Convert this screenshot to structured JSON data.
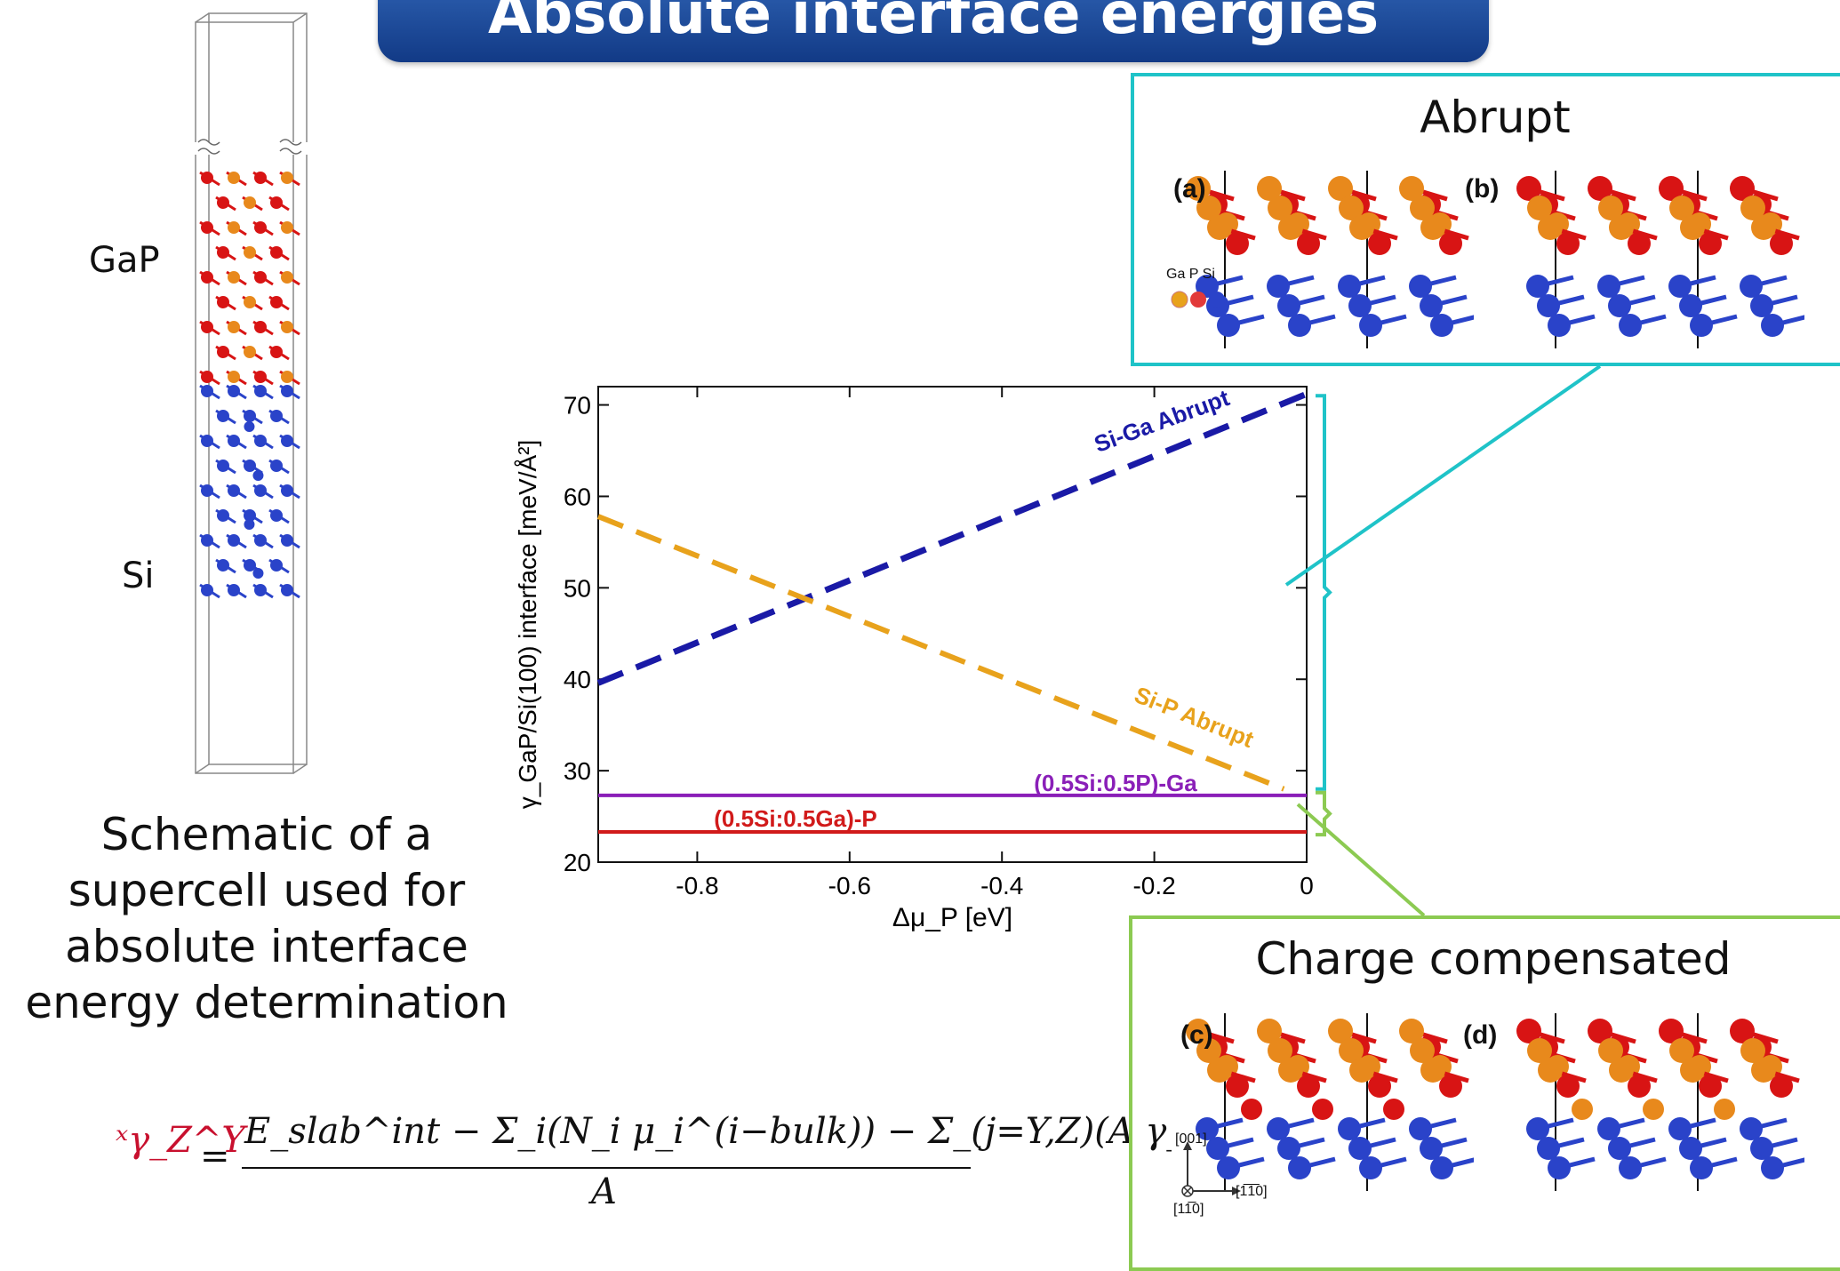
{
  "title": "Absolute interface energies",
  "supercell": {
    "label_top": "GaP",
    "label_bottom": "Si",
    "caption": [
      "Schematic of a",
      "supercell used for",
      "absolute interface",
      "energy determination"
    ]
  },
  "equation": {
    "lhs": "ˣγ_Z^Y",
    "numerator": "E_slab^int − Σ_i(N_i μ_i^(i−bulk)) − Σ_(j=Y,Z)(A γ_surf^j)",
    "denominator": "A"
  },
  "panels": {
    "abrupt": {
      "title": "Abrupt",
      "labels": [
        "(a)",
        "(b)"
      ],
      "legend": [
        "Ga",
        "P",
        "Si"
      ]
    },
    "charge": {
      "title": "Charge compensated",
      "labels": [
        "(c)",
        "(d)"
      ],
      "axes": [
        "[001]",
        "[1̅1̅0]",
        "[11̅0]"
      ]
    }
  },
  "colors": {
    "banner": "#1f4d9e",
    "cyan": "#1fc3c8",
    "green": "#8cca52",
    "ga": "#e8891c",
    "p": "#d81414",
    "si": "#2a43c9",
    "si_ga_line": "#1a1aa6",
    "si_p_line": "#e8a21c",
    "purple": "#8a1fb8",
    "red": "#d11a1a"
  },
  "chart_data": {
    "type": "line",
    "xlabel": "Δμ_P [eV]",
    "ylabel": "γ_GaP/Si(100) interface [meV/Å²]",
    "xlim": [
      -0.93,
      0
    ],
    "ylim": [
      20,
      72
    ],
    "xticks": [
      -0.8,
      -0.6,
      -0.4,
      -0.2,
      0
    ],
    "xticklabels": [
      "-0.8",
      "-0.6",
      "-0.4",
      "-0.2",
      "0"
    ],
    "yticks": [
      20,
      30,
      40,
      50,
      60,
      70
    ],
    "series": [
      {
        "name": "Si-Ga Abrupt",
        "style": "dashed",
        "x": [
          -0.93,
          0
        ],
        "y": [
          39.6,
          71.2
        ]
      },
      {
        "name": "Si-P Abrupt",
        "style": "dashed",
        "x": [
          -0.93,
          -0.03
        ],
        "y": [
          57.8,
          28.0
        ]
      },
      {
        "name": "(0.5Si:0.5P)-Ga",
        "style": "solid",
        "x": [
          -0.93,
          0
        ],
        "y": [
          27.3,
          27.3
        ]
      },
      {
        "name": "(0.5Si:0.5Ga)-P",
        "style": "solid",
        "x": [
          -0.93,
          0
        ],
        "y": [
          23.3,
          23.3
        ]
      }
    ]
  }
}
